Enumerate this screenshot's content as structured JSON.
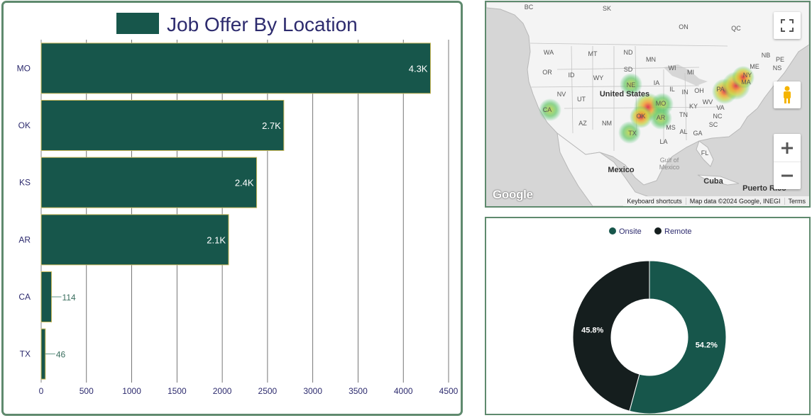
{
  "bar_chart": {
    "legend_color": "#17564b"
  },
  "map": {
    "logo_text": "Google",
    "footer": {
      "shortcuts": "Keyboard shortcuts",
      "data": "Map data ©2024 Google, INEGI",
      "terms": "Terms"
    },
    "labels": [
      {
        "text": "BC"
      },
      {
        "text": "SK"
      },
      {
        "text": "ON"
      },
      {
        "text": "QC"
      },
      {
        "text": "WA"
      },
      {
        "text": "MT"
      },
      {
        "text": "ND"
      },
      {
        "text": "MN"
      },
      {
        "text": "NB"
      },
      {
        "text": "PE"
      },
      {
        "text": "NS"
      },
      {
        "text": "ME"
      },
      {
        "text": "OR"
      },
      {
        "text": "ID"
      },
      {
        "text": "WY"
      },
      {
        "text": "SD"
      },
      {
        "text": "WI"
      },
      {
        "text": "MI"
      },
      {
        "text": "NY"
      },
      {
        "text": "NV"
      },
      {
        "text": "UT"
      },
      {
        "text": "IA"
      },
      {
        "text": "IL"
      },
      {
        "text": "IN"
      },
      {
        "text": "OH"
      },
      {
        "text": "PA"
      },
      {
        "text": "CA"
      },
      {
        "text": "NE"
      },
      {
        "text": "MO"
      },
      {
        "text": "KY"
      },
      {
        "text": "WV"
      },
      {
        "text": "VA"
      },
      {
        "text": "AZ"
      },
      {
        "text": "NM"
      },
      {
        "text": "OK"
      },
      {
        "text": "AR"
      },
      {
        "text": "TN"
      },
      {
        "text": "NC"
      },
      {
        "text": "MS"
      },
      {
        "text": "AL"
      },
      {
        "text": "GA"
      },
      {
        "text": "TX"
      },
      {
        "text": "LA"
      },
      {
        "text": "FL"
      },
      {
        "text": "SC"
      },
      {
        "text": "MA"
      },
      {
        "text": "United States"
      },
      {
        "text": "Mexico"
      },
      {
        "text": "Gulf of"
      },
      {
        "text": "Mexico"
      },
      {
        "text": "Cuba"
      },
      {
        "text": "Puerto Rico"
      }
    ]
  },
  "chart_data": [
    {
      "type": "bar",
      "orientation": "horizontal",
      "title": "Job Offer By Location",
      "categories": [
        "MO",
        "OK",
        "KS",
        "AR",
        "CA",
        "TX"
      ],
      "values": [
        4300,
        2680,
        2380,
        2070,
        114,
        46
      ],
      "data_labels": [
        "4.3K",
        "2.7K",
        "2.4K",
        "2.1K",
        "114",
        "46"
      ],
      "xlim": [
        0,
        4500
      ],
      "x_ticks": [
        0,
        500,
        1000,
        1500,
        2000,
        2500,
        3000,
        3500,
        4000,
        4500
      ],
      "grid": true,
      "legend": "top",
      "colors": {
        "bar": "#17564b",
        "bar_border": "#c9b95a",
        "text": "#2d2b6e"
      }
    },
    {
      "type": "pie",
      "donut": true,
      "labels": [
        "Onsite",
        "Remote"
      ],
      "values": [
        54.2,
        45.8
      ],
      "data_labels": [
        "54.2%",
        "45.8%"
      ],
      "legend": "top",
      "colors": [
        "#17564b",
        "#151e1e"
      ]
    }
  ]
}
